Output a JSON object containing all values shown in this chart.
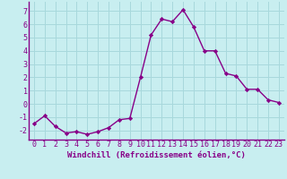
{
  "x": [
    0,
    1,
    2,
    3,
    4,
    5,
    6,
    7,
    8,
    9,
    10,
    11,
    12,
    13,
    14,
    15,
    16,
    17,
    18,
    19,
    20,
    21,
    22,
    23
  ],
  "y": [
    -1.5,
    -0.9,
    -1.7,
    -2.2,
    -2.1,
    -2.3,
    -2.1,
    -1.8,
    -1.2,
    -1.1,
    2.0,
    5.2,
    6.4,
    6.2,
    7.1,
    5.8,
    4.0,
    4.0,
    2.3,
    2.1,
    1.1,
    1.1,
    0.3,
    0.1
  ],
  "line_color": "#880088",
  "marker": "D",
  "marker_size": 2.2,
  "bg_color": "#c8eef0",
  "grid_color": "#a8d8dc",
  "xlabel": "Windchill (Refroidissement éolien,°C)",
  "ylim": [
    -2.7,
    7.7
  ],
  "xlim": [
    -0.5,
    23.5
  ],
  "yticks": [
    -2,
    -1,
    0,
    1,
    2,
    3,
    4,
    5,
    6,
    7
  ],
  "xticks": [
    0,
    1,
    2,
    3,
    4,
    5,
    6,
    7,
    8,
    9,
    10,
    11,
    12,
    13,
    14,
    15,
    16,
    17,
    18,
    19,
    20,
    21,
    22,
    23
  ],
  "xlabel_fontsize": 6.5,
  "tick_fontsize": 6,
  "tick_color": "#880088",
  "spine_color": "#880088",
  "linewidth": 1.0
}
